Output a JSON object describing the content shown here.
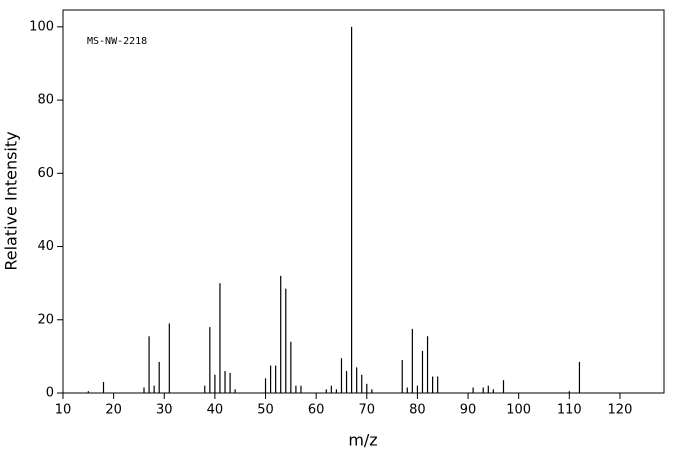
{
  "chart_data": {
    "type": "stem",
    "annotation": "MS-NW-2218",
    "x_label": "m/z",
    "y_label": "Relative Intensity",
    "color": "#000000",
    "x": [
      15,
      18,
      26,
      27,
      28,
      29,
      31,
      38,
      39,
      40,
      41,
      42,
      43,
      44,
      50,
      51,
      52,
      53,
      54,
      55,
      56,
      57,
      62,
      63,
      64,
      65,
      66,
      67,
      68,
      69,
      70,
      71,
      77,
      78,
      79,
      80,
      81,
      82,
      83,
      84,
      91,
      93,
      94,
      95,
      97,
      110,
      112
    ],
    "values": [
      0.5,
      3,
      1.5,
      15.5,
      2,
      8.5,
      19,
      2,
      18,
      5,
      30,
      6,
      5.5,
      1,
      4,
      7.5,
      7.5,
      32,
      28.5,
      14,
      2,
      2,
      1,
      2,
      1,
      9.5,
      6,
      100,
      7,
      5,
      2.5,
      1,
      9,
      1.5,
      17.5,
      2,
      11.5,
      15.5,
      4.5,
      4.5,
      1.5,
      1.5,
      2,
      1,
      3.5,
      0.5,
      8.5
    ],
    "xlim": [
      10,
      128.7
    ],
    "ylim": [
      0,
      104.6
    ],
    "xticks": [
      10,
      20,
      30,
      40,
      50,
      60,
      70,
      80,
      90,
      100,
      110,
      120
    ],
    "yticks": [
      0,
      20,
      40,
      60,
      80,
      100
    ]
  }
}
